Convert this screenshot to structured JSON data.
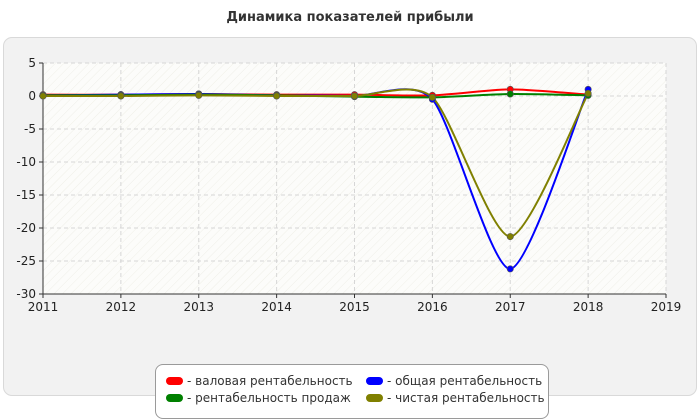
{
  "chart_data": {
    "type": "line",
    "title": "Динамика показателей прибыли",
    "xlabel": "",
    "ylabel": "",
    "x": [
      2011,
      2012,
      2013,
      2014,
      2015,
      2016,
      2017,
      2018
    ],
    "xticks": [
      "2011",
      "2012",
      "2013",
      "2014",
      "2015",
      "2016",
      "2017",
      "2018",
      "2019"
    ],
    "xlim": [
      2011,
      2019
    ],
    "yticks": [
      "5",
      "0",
      "-5",
      "-10",
      "-15",
      "-20",
      "-25",
      "-30"
    ],
    "ylim": [
      -30,
      5
    ],
    "grid": true,
    "legend_position": "bottom",
    "series": [
      {
        "name": "- валовая рентабельность",
        "color": "#ff0000",
        "values": [
          0.2,
          0.2,
          0.3,
          0.2,
          0.2,
          0.1,
          1.0,
          0.2
        ]
      },
      {
        "name": "- общая рентабельность",
        "color": "#0000ff",
        "values": [
          0.1,
          0.2,
          0.3,
          0.1,
          0.0,
          -0.5,
          -26.2,
          1.0
        ]
      },
      {
        "name": "- рентабельность продаж",
        "color": "#008000",
        "values": [
          0.1,
          0.1,
          0.2,
          0.1,
          -0.1,
          -0.2,
          0.3,
          0.1
        ]
      },
      {
        "name": "- чистая рентабельность",
        "color": "#808000",
        "values": [
          0.0,
          0.0,
          0.1,
          0.0,
          0.0,
          -0.2,
          -21.3,
          0.4
        ]
      }
    ]
  }
}
